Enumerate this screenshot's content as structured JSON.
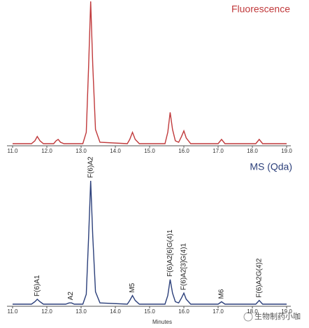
{
  "chart_data": [
    {
      "type": "line",
      "title": "Fluorescence",
      "series": [
        {
          "name": "Fluorescence",
          "color": "#c0393b",
          "x": [
            11.0,
            11.55,
            11.65,
            11.72,
            11.8,
            11.9,
            12.2,
            12.27,
            12.33,
            12.4,
            12.5,
            13.05,
            13.15,
            13.22,
            13.28,
            13.34,
            13.42,
            13.55,
            14.35,
            14.42,
            14.5,
            14.58,
            14.7,
            15.45,
            15.53,
            15.6,
            15.67,
            15.75,
            15.85,
            15.93,
            16.0,
            16.07,
            16.2,
            17.0,
            17.1,
            17.2,
            18.1,
            18.2,
            18.3,
            19.0
          ],
          "values": [
            0,
            0,
            2,
            5,
            2,
            0,
            0,
            2,
            3,
            1,
            0,
            0,
            8,
            55,
            100,
            55,
            10,
            1,
            0,
            3,
            8,
            3,
            0,
            0,
            8,
            22,
            10,
            2,
            1,
            5,
            9,
            4,
            0,
            0,
            3,
            0,
            0,
            3,
            0,
            0
          ]
        }
      ],
      "xlim": [
        11,
        19
      ],
      "ylim": [
        0,
        100
      ],
      "xticks": [
        {
          "value": 11,
          "label": "11.0"
        },
        {
          "value": 12,
          "label": "12.0"
        },
        {
          "value": 13,
          "label": "13.0"
        },
        {
          "value": 14,
          "label": "14.0"
        },
        {
          "value": 15,
          "label": "15.0"
        },
        {
          "value": 16,
          "label": "16.0"
        },
        {
          "value": 17,
          "label": "17.0"
        },
        {
          "value": 18,
          "label": "18.0"
        },
        {
          "value": 19,
          "label": "19.0"
        }
      ]
    },
    {
      "type": "line",
      "title": "MS (Qda)",
      "xlabel": "Minutes",
      "series": [
        {
          "name": "MS (Qda)",
          "color": "#2b3f7a",
          "x": [
            11.0,
            11.55,
            11.65,
            11.72,
            11.8,
            11.9,
            12.55,
            12.65,
            12.72,
            12.8,
            13.05,
            13.15,
            13.22,
            13.28,
            13.34,
            13.42,
            13.55,
            14.35,
            14.42,
            14.5,
            14.58,
            14.7,
            15.45,
            15.53,
            15.6,
            15.67,
            15.75,
            15.85,
            15.93,
            16.0,
            16.07,
            16.2,
            17.0,
            17.1,
            17.2,
            18.1,
            18.2,
            18.3,
            19.0
          ],
          "values": [
            0,
            0,
            2,
            4,
            2,
            0,
            0,
            1,
            1,
            0,
            0,
            8,
            55,
            100,
            55,
            10,
            1,
            0,
            3,
            7,
            3,
            0,
            0,
            7,
            20,
            9,
            2,
            1,
            5,
            9,
            4,
            0,
            0,
            2,
            0,
            0,
            3,
            0,
            0
          ]
        }
      ],
      "annotations": [
        {
          "text": "F(6)A1",
          "x": 11.72,
          "y": 4
        },
        {
          "text": "A2",
          "x": 12.7,
          "y": 1
        },
        {
          "text": "F(6)A2",
          "x": 13.28,
          "y": 100
        },
        {
          "text": "M5",
          "x": 14.5,
          "y": 7
        },
        {
          "text": "F(6)A2[6]G(4)1",
          "x": 15.6,
          "y": 20
        },
        {
          "text": "F(6)A2[3]G(4)1",
          "x": 16.0,
          "y": 9
        },
        {
          "text": "M6",
          "x": 17.1,
          "y": 2
        },
        {
          "text": "F(6)A2G(4)2",
          "x": 18.2,
          "y": 3
        }
      ],
      "xlim": [
        11,
        19
      ],
      "ylim": [
        0,
        100
      ],
      "xticks": [
        {
          "value": 11,
          "label": "11.0"
        },
        {
          "value": 12,
          "label": "12.0"
        },
        {
          "value": 13,
          "label": "13.0"
        },
        {
          "value": 14,
          "label": "14.0"
        },
        {
          "value": 15,
          "label": "15.0"
        },
        {
          "value": 16,
          "label": "16.0"
        },
        {
          "value": 17,
          "label": "17.0"
        },
        {
          "value": 18,
          "label": "18.0"
        },
        {
          "value": 19,
          "label": "19.0"
        }
      ]
    }
  ],
  "watermark": "生物制药小咖"
}
